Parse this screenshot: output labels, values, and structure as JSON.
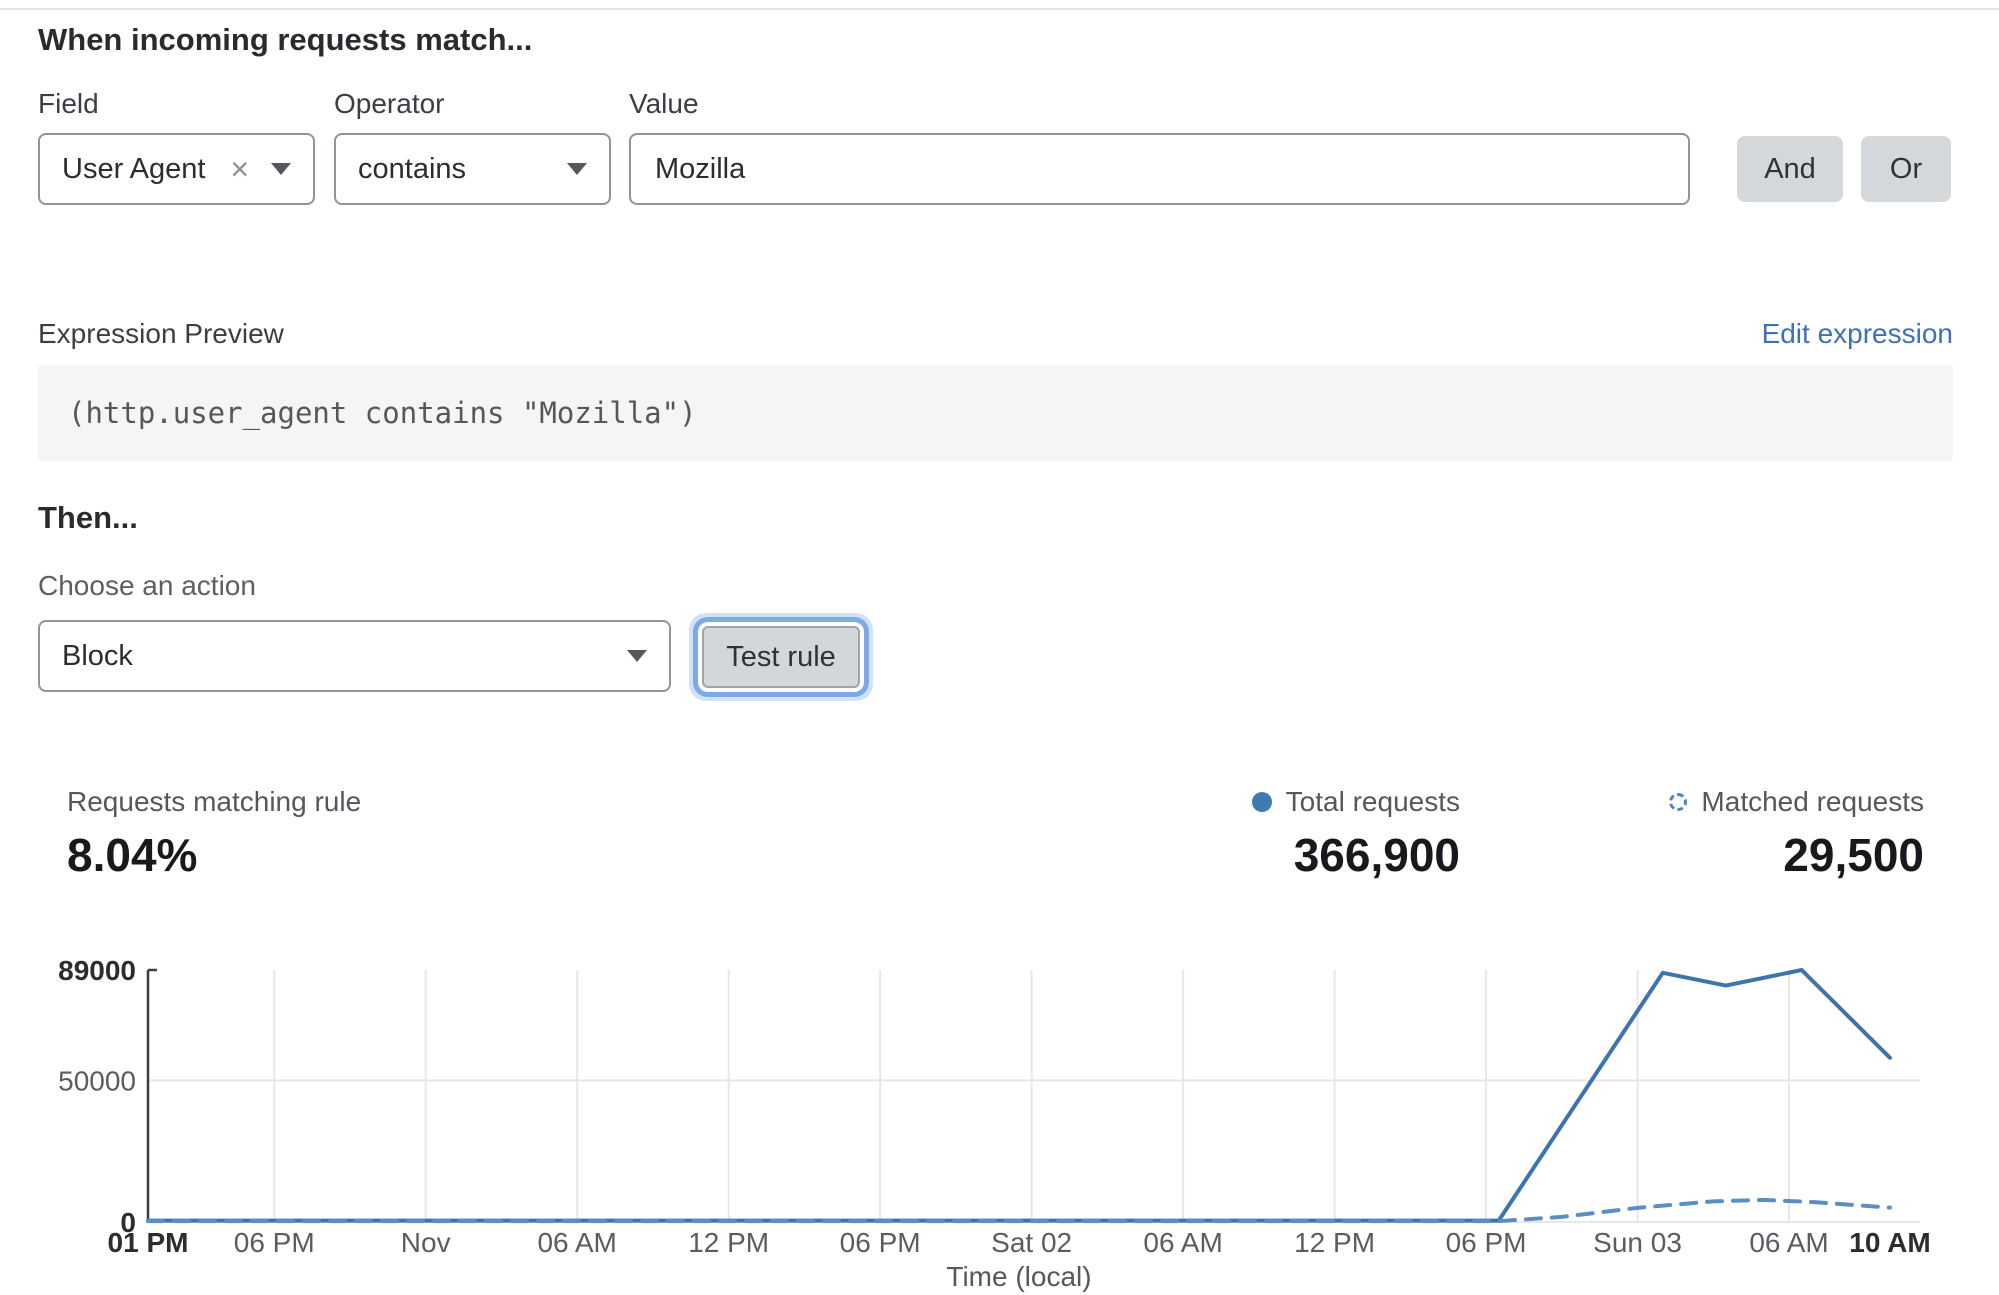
{
  "header": {
    "title": "When incoming requests match..."
  },
  "rule_builder": {
    "field": {
      "label": "Field",
      "value": "User Agent",
      "clear_icon": "×"
    },
    "operator": {
      "label": "Operator",
      "value": "contains"
    },
    "value": {
      "label": "Value",
      "value": "Mozilla"
    },
    "and_label": "And",
    "or_label": "Or"
  },
  "expression": {
    "label": "Expression Preview",
    "edit_link": "Edit expression",
    "code": "(http.user_agent contains \"Mozilla\")"
  },
  "action": {
    "title": "Then...",
    "choose_label": "Choose an action",
    "selected": "Block",
    "test_button": "Test rule"
  },
  "stats": {
    "matching": {
      "label": "Requests matching rule",
      "value": "8.04%"
    },
    "total": {
      "label": "Total requests",
      "value": "366,900"
    },
    "matched": {
      "label": "Matched requests",
      "value": "29,500"
    }
  },
  "chart_data": {
    "type": "line",
    "xlabel": "Time (local)",
    "ylim": [
      0,
      89000
    ],
    "grid": true,
    "legend_position": "top-right",
    "x_total_hours": 69,
    "yticks": [
      {
        "value": 0,
        "label": "0",
        "bold": true
      },
      {
        "value": 50000,
        "label": "50000",
        "bold": false
      },
      {
        "value": 89000,
        "label": "89000",
        "bold": true
      }
    ],
    "xticks": [
      {
        "h": 0,
        "label": "01 PM",
        "bold": true
      },
      {
        "h": 5,
        "label": "06 PM",
        "bold": false
      },
      {
        "h": 11,
        "label": "Nov",
        "bold": false
      },
      {
        "h": 17,
        "label": "06 AM",
        "bold": false
      },
      {
        "h": 23,
        "label": "12 PM",
        "bold": false
      },
      {
        "h": 29,
        "label": "06 PM",
        "bold": false
      },
      {
        "h": 35,
        "label": "Sat 02",
        "bold": false
      },
      {
        "h": 41,
        "label": "06 AM",
        "bold": false
      },
      {
        "h": 47,
        "label": "12 PM",
        "bold": false
      },
      {
        "h": 53,
        "label": "06 PM",
        "bold": false
      },
      {
        "h": 59,
        "label": "Sun 03",
        "bold": false
      },
      {
        "h": 65,
        "label": "06 AM",
        "bold": false
      },
      {
        "h": 69,
        "label": "10 AM",
        "bold": true
      }
    ],
    "series": [
      {
        "name": "Total requests",
        "style": "solid",
        "color": "#3d74ab",
        "points": [
          [
            0,
            500
          ],
          [
            53.5,
            500
          ],
          [
            60,
            88000
          ],
          [
            62.5,
            83500
          ],
          [
            65.5,
            89000
          ],
          [
            69,
            58000
          ]
        ]
      },
      {
        "name": "Matched requests",
        "style": "dashed",
        "color": "#5a8fc4",
        "points": [
          [
            0,
            300
          ],
          [
            53.5,
            300
          ],
          [
            56,
            1800
          ],
          [
            59,
            5000
          ],
          [
            62,
            7300
          ],
          [
            64,
            7800
          ],
          [
            66,
            7000
          ],
          [
            69,
            5100
          ]
        ]
      }
    ]
  }
}
